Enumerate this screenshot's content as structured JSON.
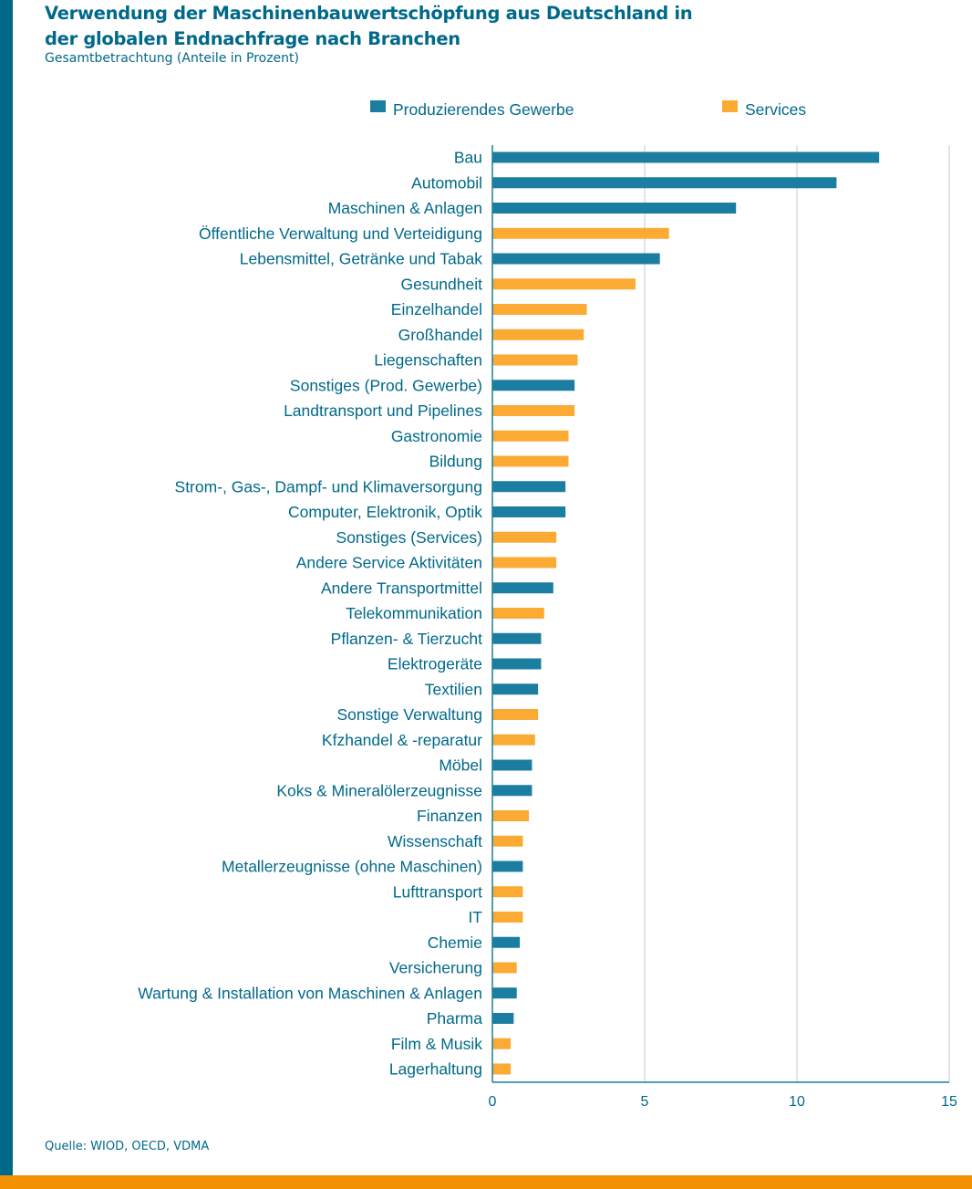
{
  "chart_data": {
    "type": "bar",
    "orientation": "horizontal",
    "title": "Verwendung der Maschinenbauwertschöpfung aus Deutschland in der globalen Endnachfrage nach Branchen",
    "subtitle": "Gesamtbetrachtung (Anteile in Prozent)",
    "source": "Quelle: WIOD, OECD, VDMA",
    "xlim": [
      0,
      15
    ],
    "xticks": [
      0,
      5,
      10,
      15
    ],
    "grid": true,
    "legend_placement": "top",
    "series": [
      {
        "name": "Produzierendes Gewerbe",
        "color": "#1b7ea0"
      },
      {
        "name": "Services",
        "color": "#fbaa33"
      }
    ],
    "categories": [
      "Bau",
      "Automobil",
      "Maschinen & Anlagen",
      "Öffentliche Verwaltung und Verteidigung",
      "Lebensmittel, Getränke und Tabak",
      "Gesundheit",
      "Einzelhandel",
      "Großhandel",
      "Liegenschaften",
      "Sonstiges (Prod. Gewerbe)",
      "Landtransport und Pipelines",
      "Gastronomie",
      "Bildung",
      "Strom-, Gas-, Dampf- und Klimaversorgung",
      "Computer, Elektronik, Optik",
      "Sonstiges (Services)",
      "Andere Service Aktivitäten",
      "Andere Transportmittel",
      "Telekommunikation",
      "Pflanzen- & Tierzucht",
      "Elektrogeräte",
      "Textilien",
      "Sonstige Verwaltung",
      "Kfzhandel & -reparatur",
      "Möbel",
      "Koks & Mineralölerzeugnisse",
      "Finanzen",
      "Wissenschaft",
      "Metallerzeugnisse (ohne Maschinen)",
      "Lufttransport",
      "IT",
      "Chemie",
      "Versicherung",
      "Wartung & Installation von Maschinen & Anlagen",
      "Pharma",
      "Film & Musik",
      "Lagerhaltung"
    ],
    "values": [
      12.7,
      11.3,
      8.0,
      5.8,
      5.5,
      4.7,
      3.1,
      3.0,
      2.8,
      2.7,
      2.7,
      2.5,
      2.5,
      2.4,
      2.4,
      2.1,
      2.1,
      2.0,
      1.7,
      1.6,
      1.6,
      1.5,
      1.5,
      1.4,
      1.3,
      1.3,
      1.2,
      1.0,
      1.0,
      1.0,
      1.0,
      0.9,
      0.8,
      0.8,
      0.7,
      0.6,
      0.6
    ],
    "group": [
      0,
      0,
      0,
      1,
      0,
      1,
      1,
      1,
      1,
      0,
      1,
      1,
      1,
      0,
      0,
      1,
      1,
      0,
      1,
      0,
      0,
      0,
      1,
      1,
      0,
      0,
      1,
      1,
      0,
      1,
      1,
      0,
      1,
      0,
      0,
      1,
      1
    ]
  }
}
